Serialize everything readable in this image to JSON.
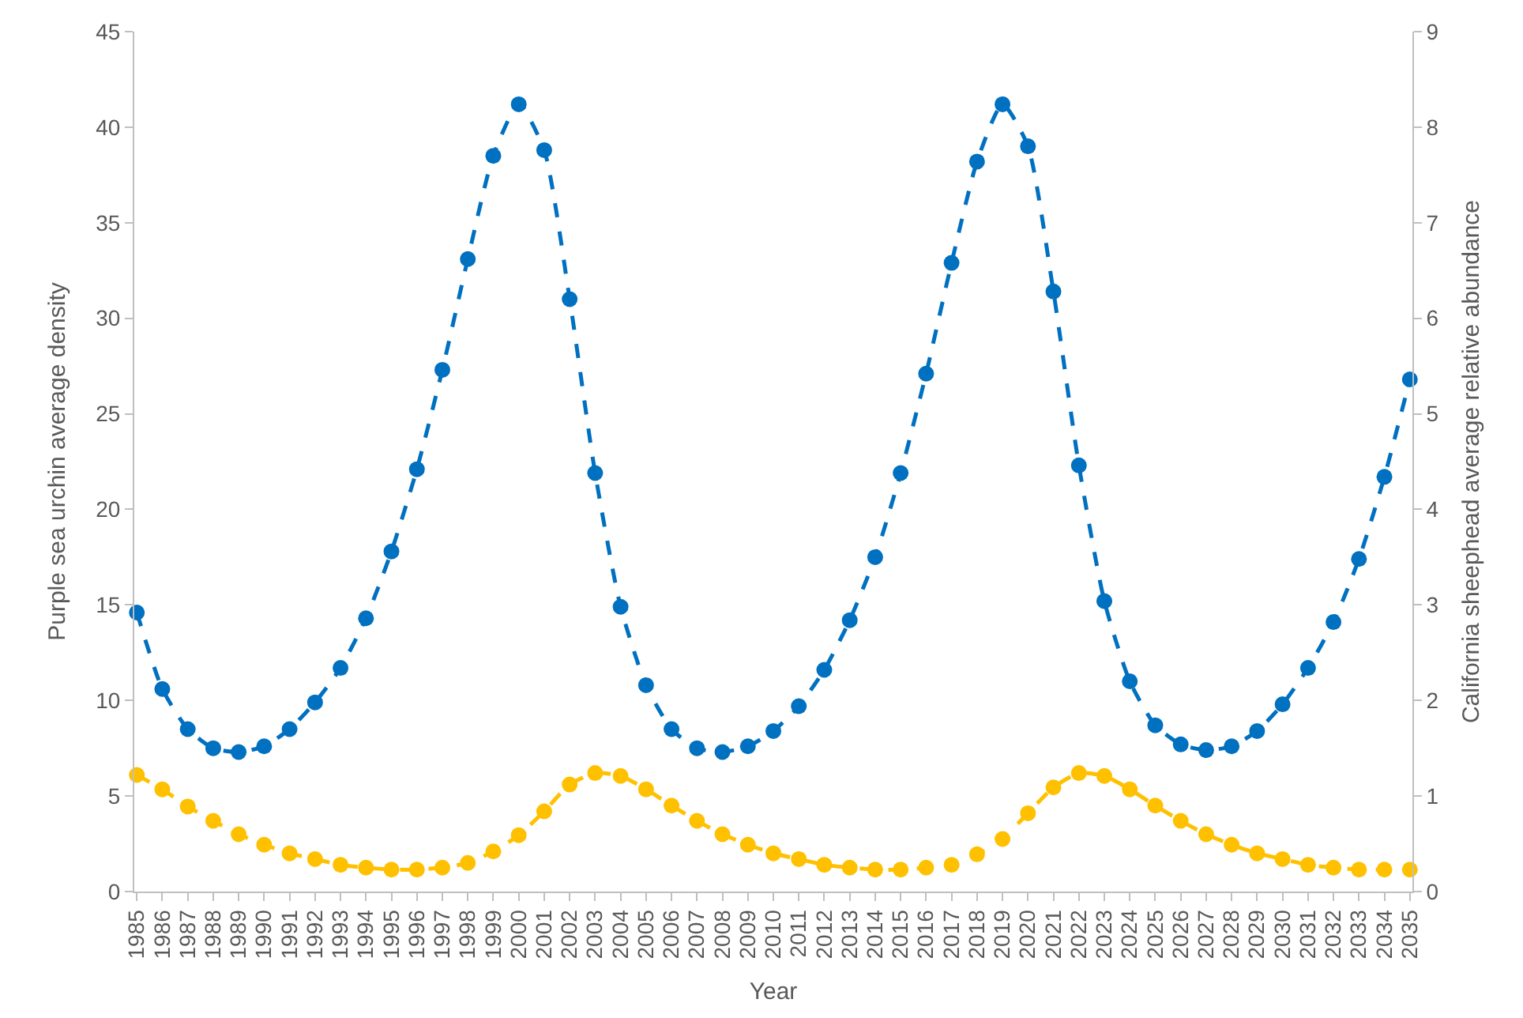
{
  "chart_data": {
    "type": "line",
    "xlabel": "Year",
    "ylabel": "Purple sea urchin average density",
    "y2label": "California sheephead average relative abundance",
    "categories": [
      "1985",
      "1986",
      "1987",
      "1988",
      "1989",
      "1990",
      "1991",
      "1992",
      "1993",
      "1994",
      "1995",
      "1996",
      "1997",
      "1998",
      "1999",
      "2000",
      "2001",
      "2002",
      "2003",
      "2004",
      "2005",
      "2006",
      "2007",
      "2008",
      "2009",
      "2010",
      "2011",
      "2012",
      "2013",
      "2014",
      "2015",
      "2016",
      "2017",
      "2018",
      "2019",
      "2020",
      "2021",
      "2022",
      "2023",
      "2024",
      "2025",
      "2026",
      "2027",
      "2028",
      "2029",
      "2030",
      "2031",
      "2032",
      "2033",
      "2034",
      "2035"
    ],
    "series": [
      {
        "color": "#0070c0",
        "line_style": "dashed",
        "marker": "circle",
        "values": [
          14.6,
          10.6,
          8.5,
          7.5,
          7.3,
          7.6,
          8.5,
          9.9,
          11.7,
          14.3,
          17.8,
          22.1,
          27.3,
          33.1,
          38.5,
          41.2,
          38.8,
          31.0,
          21.9,
          14.9,
          10.8,
          8.5,
          7.5,
          7.3,
          7.6,
          8.4,
          9.7,
          11.6,
          14.2,
          17.5,
          21.9,
          27.1,
          32.9,
          38.2,
          41.2,
          39.0,
          31.4,
          22.3,
          15.2,
          11.0,
          8.7,
          7.7,
          7.4,
          7.6,
          8.4,
          9.8,
          11.7,
          14.1,
          17.4,
          21.7,
          26.8
        ]
      },
      {
        "color": "#ffc000",
        "line_style": "dashed",
        "marker": "circle",
        "axis": "y2",
        "values": [
          1.22,
          1.07,
          0.89,
          0.74,
          0.6,
          0.49,
          0.4,
          0.34,
          0.28,
          0.25,
          0.23,
          0.23,
          0.25,
          0.3,
          0.42,
          0.59,
          0.84,
          1.12,
          1.24,
          1.21,
          1.07,
          0.9,
          0.74,
          0.6,
          0.49,
          0.4,
          0.34,
          0.28,
          0.25,
          0.23,
          0.23,
          0.25,
          0.28,
          0.39,
          0.55,
          0.82,
          1.09,
          1.24,
          1.21,
          1.07,
          0.9,
          0.74,
          0.6,
          0.49,
          0.4,
          0.34,
          0.28,
          0.25,
          0.23,
          0.23,
          0.23
        ]
      }
    ],
    "ylim": [
      0,
      45
    ],
    "yticks": [
      0,
      5,
      10,
      15,
      20,
      25,
      30,
      35,
      40,
      45
    ],
    "y2lim": [
      0,
      9
    ],
    "y2ticks": [
      0,
      1,
      2,
      3,
      4,
      5,
      6,
      7,
      8,
      9
    ]
  }
}
